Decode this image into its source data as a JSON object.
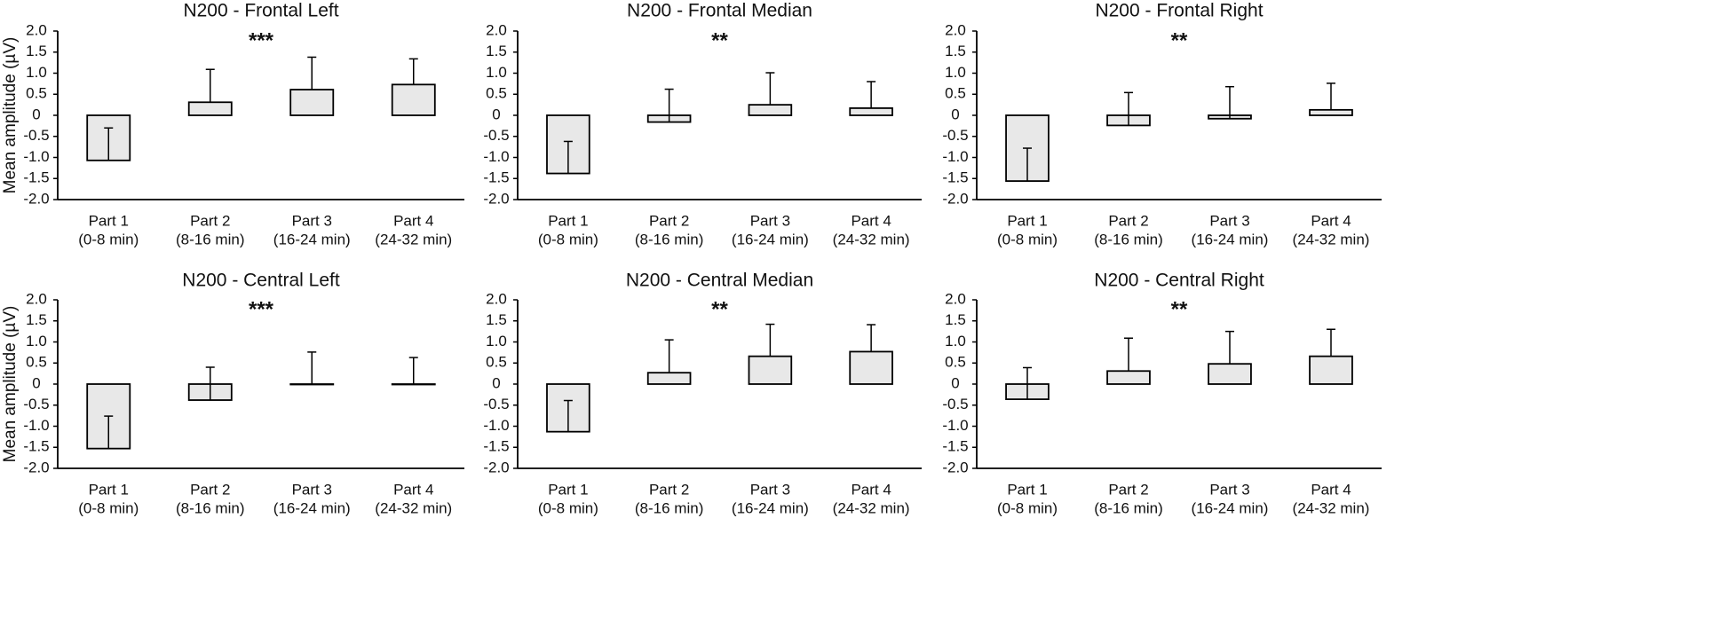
{
  "chart_data": [
    {
      "type": "bar",
      "title": "N200 - Frontal Left",
      "ylabel": "Mean amplitude (µV)",
      "significance": "***",
      "ylim": [
        -2.0,
        2.0
      ],
      "yticks": [
        "2.0",
        "1.5",
        "1.0",
        "0.5",
        "0",
        "-0.5",
        "-1.0",
        "-1.5",
        "-2.0"
      ],
      "categories": [
        [
          "Part 1",
          "(0-8 min)"
        ],
        [
          "Part 2",
          "(8-16 min)"
        ],
        [
          "Part 3",
          "(16-24 min)"
        ],
        [
          "Part 4",
          "(24-32 min)"
        ]
      ],
      "values": [
        -1.07,
        0.31,
        0.61,
        0.73
      ],
      "errors": [
        0.77,
        0.78,
        0.77,
        0.61
      ]
    },
    {
      "type": "bar",
      "title": "N200 - Frontal Median",
      "ylabel": "",
      "significance": "**",
      "ylim": [
        -2.0,
        2.0
      ],
      "yticks": [
        "2.0",
        "1.5",
        "1.0",
        "0.5",
        "0",
        "-0.5",
        "-1.0",
        "-1.5",
        "-2.0"
      ],
      "categories": [
        [
          "Part 1",
          "(0-8 min)"
        ],
        [
          "Part 2",
          "(8-16 min)"
        ],
        [
          "Part 3",
          "(16-24 min)"
        ],
        [
          "Part 4",
          "(24-32 min)"
        ]
      ],
      "values": [
        -1.38,
        -0.16,
        0.25,
        0.17
      ],
      "errors": [
        0.76,
        0.78,
        0.76,
        0.63
      ]
    },
    {
      "type": "bar",
      "title": "N200 - Frontal Right",
      "ylabel": "",
      "significance": "**",
      "ylim": [
        -2.0,
        2.0
      ],
      "yticks": [
        "2.0",
        "1.5",
        "1.0",
        "0.5",
        "0",
        "-0.5",
        "-1.0",
        "-1.5",
        "-2.0"
      ],
      "categories": [
        [
          "Part 1",
          "(0-8 min)"
        ],
        [
          "Part 2",
          "(8-16 min)"
        ],
        [
          "Part 3",
          "(16-24 min)"
        ],
        [
          "Part 4",
          "(24-32 min)"
        ]
      ],
      "values": [
        -1.56,
        -0.24,
        -0.08,
        0.13
      ],
      "errors": [
        0.78,
        0.78,
        0.76,
        0.63
      ]
    },
    {
      "type": "bar",
      "title": "N200 - Central Left",
      "ylabel": "Mean amplitude (µV)",
      "significance": "***",
      "ylim": [
        -2.0,
        2.0
      ],
      "yticks": [
        "2.0",
        "1.5",
        "1.0",
        "0.5",
        "0",
        "-0.5",
        "-1.0",
        "-1.5",
        "-2.0"
      ],
      "categories": [
        [
          "Part 1",
          "(0-8 min)"
        ],
        [
          "Part 2",
          "(8-16 min)"
        ],
        [
          "Part 3",
          "(16-24 min)"
        ],
        [
          "Part 4",
          "(24-32 min)"
        ]
      ],
      "values": [
        -1.53,
        -0.38,
        0.0,
        0.0
      ],
      "errors": [
        0.77,
        0.78,
        0.76,
        0.63
      ]
    },
    {
      "type": "bar",
      "title": "N200 - Central Median",
      "ylabel": "",
      "significance": "**",
      "ylim": [
        -2.0,
        2.0
      ],
      "yticks": [
        "2.0",
        "1.5",
        "1.0",
        "0.5",
        "0",
        "-0.5",
        "-1.0",
        "-1.5",
        "-2.0"
      ],
      "categories": [
        [
          "Part 1",
          "(0-8 min)"
        ],
        [
          "Part 2",
          "(8-16 min)"
        ],
        [
          "Part 3",
          "(16-24 min)"
        ],
        [
          "Part 4",
          "(24-32 min)"
        ]
      ],
      "values": [
        -1.13,
        0.27,
        0.66,
        0.77
      ],
      "errors": [
        0.74,
        0.78,
        0.76,
        0.64
      ]
    },
    {
      "type": "bar",
      "title": "N200 - Central Right",
      "ylabel": "",
      "significance": "**",
      "ylim": [
        -2.0,
        2.0
      ],
      "yticks": [
        "2.0",
        "1.5",
        "1.0",
        "0.5",
        "0",
        "-0.5",
        "-1.0",
        "-1.5",
        "-2.0"
      ],
      "categories": [
        [
          "Part 1",
          "(0-8 min)"
        ],
        [
          "Part 2",
          "(8-16 min)"
        ],
        [
          "Part 3",
          "(16-24 min)"
        ],
        [
          "Part 4",
          "(24-32 min)"
        ]
      ],
      "values": [
        -0.36,
        0.31,
        0.48,
        0.66
      ],
      "errors": [
        0.75,
        0.78,
        0.77,
        0.64
      ]
    }
  ],
  "colors": {
    "bar_fill": "#e8e8e8",
    "stroke": "#000000",
    "text": "#111111"
  }
}
